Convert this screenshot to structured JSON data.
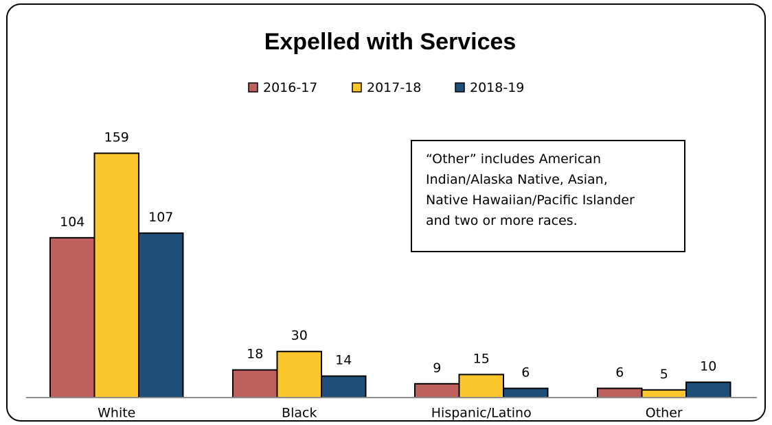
{
  "chart_data": {
    "type": "bar",
    "title": "Expelled with Services",
    "xlabel": "",
    "ylabel": "",
    "categories": [
      "White",
      "Black",
      "Hispanic/Latino",
      "Other"
    ],
    "series": [
      {
        "name": "2016-17",
        "color": "#c0605e",
        "values": [
          104,
          18,
          9,
          6
        ]
      },
      {
        "name": "2017-18",
        "color": "#fcc72c",
        "values": [
          159,
          30,
          15,
          5
        ]
      },
      {
        "name": "2018-19",
        "color": "#1f4e79",
        "values": [
          107,
          14,
          6,
          10
        ]
      }
    ],
    "ylim": [
      0,
      170
    ],
    "grid": false,
    "legend_position": "top-center",
    "annotation": {
      "lines": [
        "“Other” includes American",
        "Indian/Alaska Native, Asian,",
        "Native Hawaiian/Pacific Islander",
        "and two or more races."
      ]
    }
  }
}
